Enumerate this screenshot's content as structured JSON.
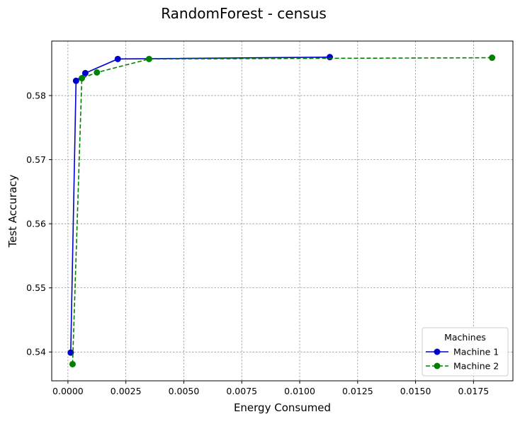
{
  "chart_data": {
    "type": "line",
    "title": "RandomForest - census",
    "xlabel": "Energy Consumed",
    "ylabel": "Test Accuracy",
    "xlim": [
      -0.0007,
      0.0192
    ],
    "ylim": [
      0.5355,
      0.5885
    ],
    "xticks": [
      0.0,
      0.0025,
      0.005,
      0.0075,
      0.01,
      0.0125,
      0.015,
      0.0175
    ],
    "xtick_labels": [
      "0.0000",
      "0.0025",
      "0.0050",
      "0.0075",
      "0.0100",
      "0.0125",
      "0.0150",
      "0.0175"
    ],
    "yticks": [
      0.54,
      0.55,
      0.56,
      0.57,
      0.58
    ],
    "ytick_labels": [
      "0.54",
      "0.55",
      "0.56",
      "0.57",
      "0.58"
    ],
    "grid": true,
    "legend": {
      "title": "Machines",
      "position": "lower-right"
    },
    "series": [
      {
        "name": "Machine 1",
        "color": "#0000cc",
        "linestyle": "solid",
        "marker": "circle",
        "x": [
          0.00012,
          0.00035,
          0.00075,
          0.00215,
          0.0113
        ],
        "y": [
          0.5399,
          0.5823,
          0.5835,
          0.5857,
          0.586
        ]
      },
      {
        "name": "Machine 2",
        "color": "#008000",
        "linestyle": "dashed",
        "marker": "circle",
        "x": [
          0.0002,
          0.0006,
          0.00125,
          0.0035,
          0.0183
        ],
        "y": [
          0.5381,
          0.5827,
          0.5836,
          0.5857,
          0.5859
        ]
      }
    ]
  }
}
